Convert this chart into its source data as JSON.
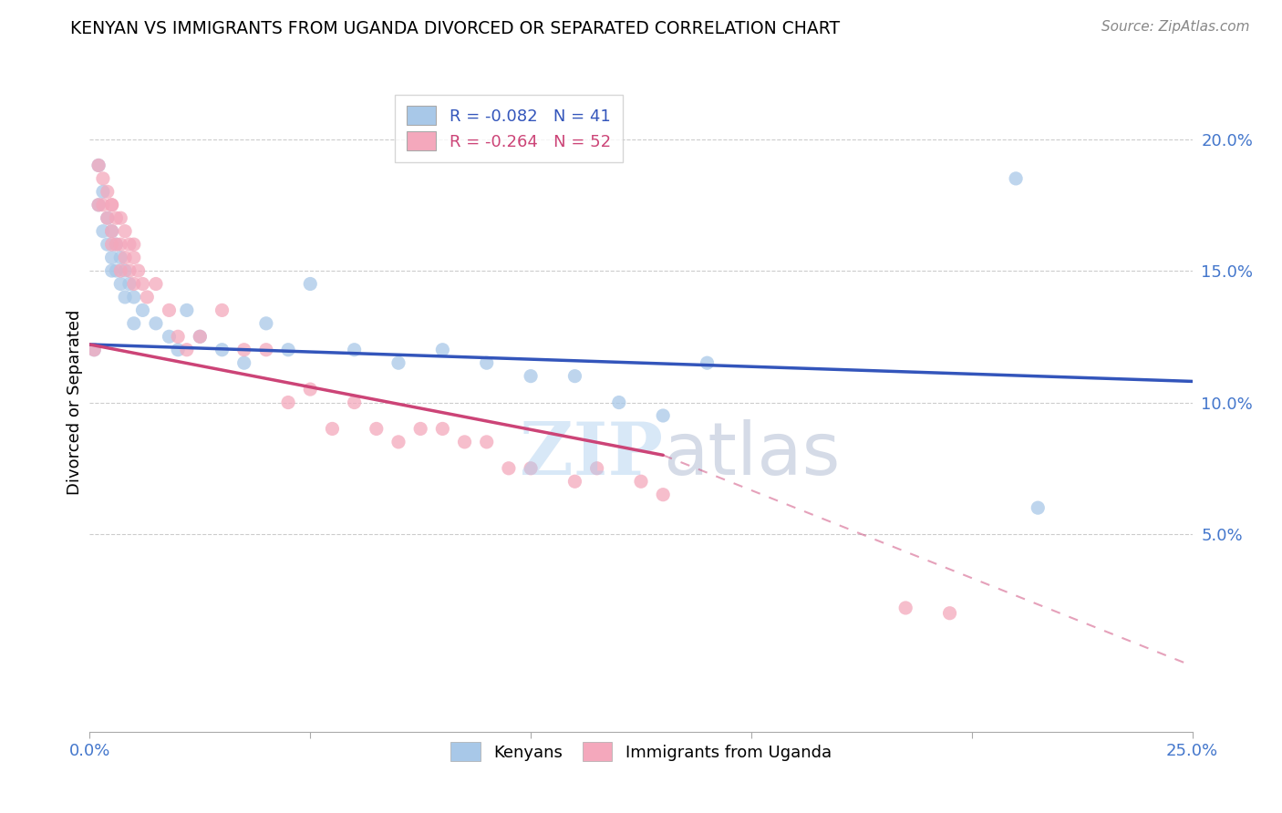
{
  "title": "KENYAN VS IMMIGRANTS FROM UGANDA DIVORCED OR SEPARATED CORRELATION CHART",
  "source": "Source: ZipAtlas.com",
  "ylabel": "Divorced or Separated",
  "xlim": [
    0.0,
    0.25
  ],
  "ylim": [
    -0.025,
    0.225
  ],
  "yticks": [
    0.05,
    0.1,
    0.15,
    0.2
  ],
  "ytick_labels": [
    "5.0%",
    "10.0%",
    "15.0%",
    "20.0%"
  ],
  "xticks": [
    0.0,
    0.05,
    0.1,
    0.15,
    0.2,
    0.25
  ],
  "xtick_labels": [
    "0.0%",
    "",
    "",
    "",
    "",
    "25.0%"
  ],
  "legend_r_blue": "R = -0.082",
  "legend_n_blue": "N = 41",
  "legend_r_pink": "R = -0.264",
  "legend_n_pink": "N = 52",
  "blue_color": "#a8c8e8",
  "pink_color": "#f4a8bc",
  "blue_line_color": "#3355bb",
  "pink_line_color": "#cc4477",
  "watermark_zip": "ZIP",
  "watermark_atlas": "atlas",
  "grid_color": "#cccccc",
  "background_color": "#ffffff",
  "blue_x": [
    0.001,
    0.002,
    0.002,
    0.003,
    0.003,
    0.004,
    0.004,
    0.005,
    0.005,
    0.005,
    0.006,
    0.006,
    0.007,
    0.007,
    0.008,
    0.008,
    0.009,
    0.01,
    0.01,
    0.012,
    0.015,
    0.018,
    0.02,
    0.022,
    0.025,
    0.03,
    0.035,
    0.04,
    0.045,
    0.05,
    0.06,
    0.07,
    0.08,
    0.09,
    0.1,
    0.11,
    0.12,
    0.13,
    0.14,
    0.21,
    0.215
  ],
  "blue_y": [
    0.12,
    0.19,
    0.175,
    0.18,
    0.165,
    0.17,
    0.16,
    0.165,
    0.155,
    0.15,
    0.16,
    0.15,
    0.155,
    0.145,
    0.15,
    0.14,
    0.145,
    0.14,
    0.13,
    0.135,
    0.13,
    0.125,
    0.12,
    0.135,
    0.125,
    0.12,
    0.115,
    0.13,
    0.12,
    0.145,
    0.12,
    0.115,
    0.12,
    0.115,
    0.11,
    0.11,
    0.1,
    0.095,
    0.115,
    0.185,
    0.06
  ],
  "pink_x": [
    0.001,
    0.002,
    0.002,
    0.003,
    0.003,
    0.004,
    0.004,
    0.005,
    0.005,
    0.005,
    0.005,
    0.006,
    0.006,
    0.007,
    0.007,
    0.007,
    0.008,
    0.008,
    0.009,
    0.009,
    0.01,
    0.01,
    0.01,
    0.011,
    0.012,
    0.013,
    0.015,
    0.018,
    0.02,
    0.022,
    0.025,
    0.03,
    0.035,
    0.04,
    0.045,
    0.05,
    0.055,
    0.06,
    0.065,
    0.07,
    0.075,
    0.08,
    0.085,
    0.09,
    0.095,
    0.1,
    0.11,
    0.115,
    0.125,
    0.13,
    0.185,
    0.195
  ],
  "pink_y": [
    0.12,
    0.19,
    0.175,
    0.185,
    0.175,
    0.18,
    0.17,
    0.175,
    0.165,
    0.175,
    0.16,
    0.17,
    0.16,
    0.17,
    0.16,
    0.15,
    0.165,
    0.155,
    0.16,
    0.15,
    0.16,
    0.155,
    0.145,
    0.15,
    0.145,
    0.14,
    0.145,
    0.135,
    0.125,
    0.12,
    0.125,
    0.135,
    0.12,
    0.12,
    0.1,
    0.105,
    0.09,
    0.1,
    0.09,
    0.085,
    0.09,
    0.09,
    0.085,
    0.085,
    0.075,
    0.075,
    0.07,
    0.075,
    0.07,
    0.065,
    0.022,
    0.02
  ],
  "blue_line_x0": 0.0,
  "blue_line_y0": 0.122,
  "blue_line_x1": 0.25,
  "blue_line_y1": 0.108,
  "pink_line_x0": 0.0,
  "pink_line_y0": 0.122,
  "pink_line_x1_solid": 0.13,
  "pink_line_y1_solid": 0.08,
  "pink_line_x1_dash": 0.25,
  "pink_line_y1_dash": 0.0
}
